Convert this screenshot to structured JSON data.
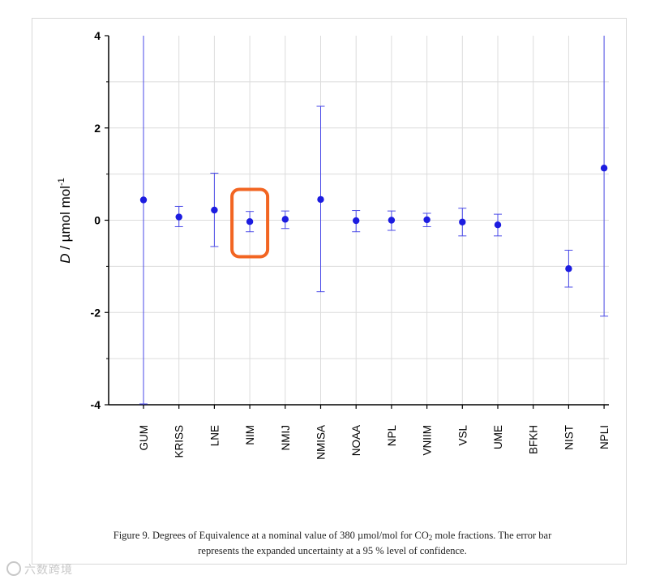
{
  "chart_data": {
    "type": "scatter",
    "ylabel_var": "D",
    "ylabel_unit": " / µmol mol",
    "ylabel_sup": "-1",
    "ylim": [
      -4,
      4
    ],
    "yticks": [
      4,
      2,
      0,
      -2,
      -4
    ],
    "grid": true,
    "categories": [
      "GUM",
      "KRISS",
      "LNE",
      "NIM",
      "NMIJ",
      "NMISA",
      "NOAA",
      "NPL",
      "VNIIM",
      "VSL",
      "UME",
      "BFKH",
      "NIST",
      "NPLI"
    ],
    "values": [
      0.44,
      0.07,
      0.22,
      -0.03,
      0.02,
      0.45,
      -0.01,
      0.0,
      0.01,
      -0.04,
      -0.1,
      null,
      -1.05,
      1.13
    ],
    "err_low": [
      -4.0,
      -0.14,
      -0.57,
      -0.25,
      -0.18,
      -1.55,
      -0.25,
      -0.22,
      -0.14,
      -0.34,
      -0.34,
      null,
      -1.45,
      -2.08
    ],
    "err_high": [
      4.0,
      0.3,
      1.02,
      0.19,
      0.2,
      2.47,
      0.21,
      0.2,
      0.15,
      0.26,
      0.13,
      null,
      -0.65,
      4.0
    ],
    "highlight": "NIM",
    "colors": {
      "series": "#1c1ce0",
      "error": "#4a4ae8",
      "highlight": "#f26522",
      "grid": "#dcdcdc",
      "axis": "#000000"
    }
  },
  "caption": {
    "line1_a": "Figure 9.  Degrees of Equivalence at a nominal value of 380 µmol/mol for CO",
    "line1_sub": "2",
    "line1_b": " mole fractions. The error bar",
    "line2": "represents the expanded uncertainty at a 95 % level of confidence."
  },
  "watermark": "六数跨境"
}
